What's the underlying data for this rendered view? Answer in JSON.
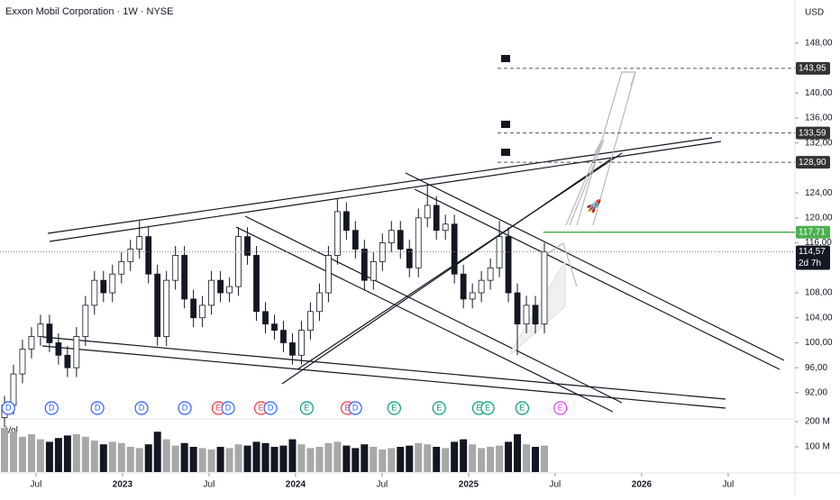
{
  "chart_data": {
    "type": "candlestick",
    "title": "Exxon Mobil Corporation · 1W · NYSE",
    "currency": "USD",
    "volume_label": "Vol",
    "up_color": "#ffffff",
    "down_color": "#131722",
    "volume_up_color": "#a8a8a8",
    "volume_down_color": "#131722",
    "xlim": [
      2022.292,
      2026.886
    ],
    "xticks": [
      {
        "value": 2022.5,
        "label": "Jul"
      },
      2023,
      {
        "value": 2023.5,
        "label": "Jul"
      },
      2024,
      {
        "value": 2024.5,
        "label": "Jul"
      },
      2025,
      {
        "value": 2025.5,
        "label": "Jul"
      },
      2026,
      {
        "value": 2026.5,
        "label": "Jul"
      }
    ],
    "ylim": [
      87.8,
      154.9
    ],
    "yticks": [
      {
        "value": 148,
        "label": "148,00"
      },
      {
        "value": 140,
        "label": "140,00"
      },
      {
        "value": 136,
        "label": "136,00"
      },
      {
        "value": 132,
        "label": "132,00"
      },
      {
        "value": 124,
        "label": "124,00"
      },
      {
        "value": 120,
        "label": "120,00"
      },
      {
        "value": 116,
        "label": "116,00"
      },
      {
        "value": 108,
        "label": "108,00"
      },
      {
        "value": 104,
        "label": "104,00"
      },
      {
        "value": 100,
        "label": "100,00"
      },
      {
        "value": 96,
        "label": "96,00"
      },
      {
        "value": 92,
        "label": "92,00"
      }
    ],
    "vlim": [
      0,
      210.7
    ],
    "vticks": [
      {
        "value": 200,
        "label": "200 M"
      },
      {
        "value": 100,
        "label": "100 M"
      }
    ],
    "levels": [
      {
        "value": 143.95,
        "label": "143,95",
        "color": "#333333",
        "line": "dashed"
      },
      {
        "value": 133.59,
        "label": "133,59",
        "color": "#333333",
        "line": "dashed"
      },
      {
        "value": 128.9,
        "label": "128,90",
        "color": "#333333",
        "line": "dashed"
      },
      {
        "value": 117.71,
        "label": "117,71",
        "color": "#4caf50",
        "line": "solid"
      }
    ],
    "last_price": {
      "value": 114.57,
      "label": "114,57",
      "countdown": "2d 7h"
    },
    "events": [
      {
        "x": 2022.34,
        "label": "D"
      },
      {
        "x": 2022.59,
        "label": "D"
      },
      {
        "x": 2022.855,
        "label": "D"
      },
      {
        "x": 2023.11,
        "label": "D"
      },
      {
        "x": 2023.36,
        "label": "D"
      },
      {
        "x": 2023.555,
        "label": "E"
      },
      {
        "x": 2023.61,
        "label": "D"
      },
      {
        "x": 2023.8,
        "label": "E"
      },
      {
        "x": 2023.855,
        "label": "D"
      },
      {
        "x": 2024.065,
        "label": "E"
      },
      {
        "x": 2024.3,
        "label": "E"
      },
      {
        "x": 2024.345,
        "label": "D"
      },
      {
        "x": 2024.57,
        "label": "E"
      },
      {
        "x": 2024.83,
        "label": "E"
      },
      {
        "x": 2025.06,
        "label": "E"
      },
      {
        "x": 2025.11,
        "label": "E"
      },
      {
        "x": 2025.31,
        "label": "E"
      },
      {
        "x": 2025.53,
        "label": "E"
      }
    ],
    "x": [
      2022.318,
      2022.37,
      2022.422,
      2022.474,
      2022.526,
      2022.578,
      2022.63,
      2022.682,
      2022.734,
      2022.786,
      2022.838,
      2022.89,
      2022.942,
      2022.994,
      2023.046,
      2023.098,
      2023.15,
      2023.202,
      2023.254,
      2023.306,
      2023.358,
      2023.41,
      2023.462,
      2023.514,
      2023.566,
      2023.618,
      2023.67,
      2023.722,
      2023.774,
      2023.826,
      2023.878,
      2023.93,
      2023.982,
      2024.034,
      2024.086,
      2024.138,
      2024.19,
      2024.242,
      2024.294,
      2024.346,
      2024.398,
      2024.45,
      2024.502,
      2024.554,
      2024.606,
      2024.658,
      2024.71,
      2024.762,
      2024.814,
      2024.866,
      2024.918,
      2024.97,
      2025.022,
      2025.074,
      2025.126,
      2025.178,
      2025.23,
      2025.282,
      2025.334,
      2025.386,
      2025.438
    ],
    "open": [
      88,
      90,
      95,
      99,
      101,
      103,
      100,
      98,
      96,
      101,
      106,
      110,
      108,
      111,
      113,
      115,
      117,
      111,
      101,
      110,
      114,
      107,
      104,
      106,
      110,
      108,
      109,
      117,
      114,
      105,
      103,
      102,
      100,
      98,
      102,
      105,
      108,
      114,
      121,
      118,
      115,
      110,
      113,
      116,
      118,
      115,
      112,
      120,
      122,
      118,
      119,
      111,
      107,
      108,
      110,
      112,
      117,
      108,
      103,
      106,
      103
    ],
    "high": [
      91.5,
      96.5,
      100.5,
      102.5,
      104.5,
      104.5,
      101.5,
      99.5,
      102.5,
      107.5,
      111.5,
      111.5,
      112.5,
      114.5,
      116.5,
      119.5,
      118.5,
      112.5,
      111.5,
      115.5,
      115.5,
      108.5,
      107.5,
      111.5,
      111.5,
      110.5,
      118.5,
      118.5,
      115.5,
      106.5,
      104.5,
      103.5,
      101.5,
      103.5,
      106.5,
      109.5,
      115.5,
      123,
      122.5,
      119.5,
      116.5,
      114.5,
      117.5,
      119.5,
      119.5,
      116.5,
      121.5,
      125.5,
      123.5,
      120.5,
      120.5,
      112.5,
      109.5,
      111.5,
      113.5,
      119.5,
      118.5,
      109.5,
      107.5,
      107.5,
      116
    ],
    "low": [
      86.5,
      88.5,
      93.5,
      97.5,
      99.5,
      98.5,
      96.5,
      94.5,
      94.5,
      99.5,
      104.5,
      106.5,
      106.5,
      109.5,
      111.5,
      113.5,
      109.5,
      99.5,
      99.5,
      108.5,
      105.5,
      102.5,
      102.5,
      104.5,
      106.5,
      106.5,
      107.5,
      112.5,
      103.5,
      101.5,
      100.5,
      98.5,
      96.5,
      96.5,
      100.5,
      103.5,
      106.5,
      112.5,
      116.5,
      113.5,
      108.5,
      108.5,
      111.5,
      114.5,
      113.5,
      110.5,
      110.5,
      118.5,
      116.5,
      116.5,
      109.5,
      105.5,
      105.5,
      106.5,
      108.5,
      110.5,
      106.5,
      98,
      101.5,
      101.5,
      101.5
    ],
    "close": [
      90,
      95,
      99,
      101,
      103,
      100,
      98,
      96,
      101,
      106,
      110,
      108,
      111,
      113,
      115,
      117,
      111,
      101,
      110,
      114,
      107,
      104,
      106,
      110,
      108,
      109,
      117,
      114,
      105,
      103,
      102,
      100,
      98,
      102,
      105,
      108,
      114,
      121,
      118,
      115,
      110,
      113,
      116,
      118,
      115,
      112,
      120,
      122,
      118,
      119,
      111,
      107,
      108,
      110,
      112,
      117,
      108,
      103,
      106,
      103,
      114.57
    ],
    "volume": [
      175,
      160,
      140,
      150,
      130,
      120,
      135,
      145,
      150,
      140,
      125,
      110,
      120,
      115,
      100,
      95,
      110,
      160,
      130,
      105,
      115,
      100,
      95,
      90,
      100,
      95,
      110,
      105,
      120,
      115,
      100,
      105,
      130,
      110,
      95,
      100,
      115,
      120,
      105,
      95,
      110,
      100,
      90,
      95,
      100,
      105,
      115,
      110,
      100,
      95,
      120,
      130,
      110,
      95,
      100,
      105,
      120,
      150,
      110,
      100,
      105
    ]
  }
}
